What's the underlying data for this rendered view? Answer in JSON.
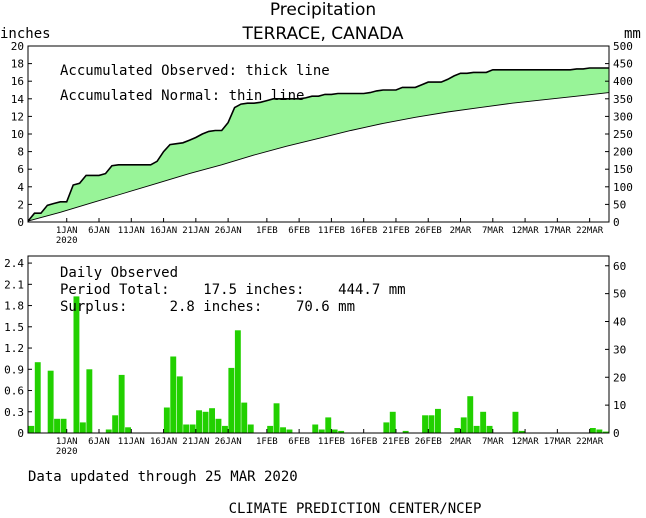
{
  "chart_data": [
    {
      "type": "area",
      "title": "Precipitation",
      "subtitle": "TERRACE, CANADA",
      "ylabel_left": "inches",
      "ylabel_right": "mm",
      "ylim": [
        0,
        20
      ],
      "yticks": [
        "0",
        "2",
        "4",
        "6",
        "8",
        "10",
        "12",
        "14",
        "16",
        "18",
        "20"
      ],
      "yticks_right": [
        "0",
        "50",
        "100",
        "150",
        "200",
        "250",
        "300",
        "350",
        "400",
        "450",
        "500"
      ],
      "fill_color": "#98F498",
      "annotations": [
        "Accumulated Observed: thick line",
        "Accumulated Normal: thin line"
      ],
      "x_days": 90,
      "date_ticks": [
        {
          "day": 6,
          "label": "1JAN",
          "sub": "2020"
        },
        {
          "day": 11,
          "label": "6JAN"
        },
        {
          "day": 16,
          "label": "11JAN"
        },
        {
          "day": 21,
          "label": "16JAN"
        },
        {
          "day": 26,
          "label": "21JAN"
        },
        {
          "day": 31,
          "label": "26JAN"
        },
        {
          "day": 37,
          "label": "1FEB"
        },
        {
          "day": 42,
          "label": "6FEB"
        },
        {
          "day": 47,
          "label": "11FEB"
        },
        {
          "day": 52,
          "label": "16FEB"
        },
        {
          "day": 57,
          "label": "21FEB"
        },
        {
          "day": 62,
          "label": "26FEB"
        },
        {
          "day": 67,
          "label": "2MAR"
        },
        {
          "day": 72,
          "label": "7MAR"
        },
        {
          "day": 77,
          "label": "12MAR"
        },
        {
          "day": 82,
          "label": "17MAR"
        },
        {
          "day": 87,
          "label": "22MAR"
        }
      ],
      "series": [
        {
          "name": "Accumulated Observed",
          "x": [
            0,
            1,
            2,
            3,
            4,
            5,
            6,
            7,
            8,
            9,
            10,
            11,
            12,
            13,
            14,
            15,
            16,
            17,
            18,
            19,
            20,
            21,
            22,
            23,
            24,
            25,
            26,
            27,
            28,
            29,
            30,
            31,
            32,
            33,
            34,
            35,
            36,
            37,
            38,
            39,
            40,
            41,
            42,
            43,
            44,
            45,
            46,
            47,
            48,
            49,
            50,
            51,
            52,
            53,
            54,
            55,
            56,
            57,
            58,
            59,
            60,
            61,
            62,
            63,
            64,
            65,
            66,
            67,
            68,
            69,
            70,
            71,
            72,
            73,
            74,
            75,
            76,
            77,
            78,
            79,
            80,
            81,
            82,
            83,
            84,
            85,
            86,
            87,
            88,
            89,
            90
          ],
          "values": [
            0.1,
            1.0,
            1.0,
            1.9,
            2.1,
            2.3,
            2.3,
            4.2,
            4.4,
            5.3,
            5.3,
            5.3,
            5.5,
            6.4,
            6.5,
            6.5,
            6.5,
            6.5,
            6.5,
            6.5,
            6.9,
            8.0,
            8.8,
            8.9,
            9.0,
            9.3,
            9.6,
            10.0,
            10.3,
            10.4,
            10.4,
            11.3,
            13.0,
            13.4,
            13.5,
            13.5,
            13.6,
            13.8,
            14.0,
            14.0,
            14.0,
            14.0,
            14.0,
            14.1,
            14.3,
            14.3,
            14.5,
            14.5,
            14.6,
            14.6,
            14.6,
            14.6,
            14.6,
            14.7,
            14.9,
            15.0,
            15.0,
            15.0,
            15.3,
            15.3,
            15.3,
            15.6,
            15.9,
            15.9,
            15.9,
            16.2,
            16.6,
            16.9,
            16.9,
            17.0,
            17.0,
            17.0,
            17.3,
            17.3,
            17.3,
            17.3,
            17.3,
            17.3,
            17.3,
            17.3,
            17.3,
            17.3,
            17.3,
            17.3,
            17.3,
            17.4,
            17.4,
            17.5,
            17.5,
            17.5,
            17.5
          ]
        },
        {
          "name": "Accumulated Normal",
          "x": [
            0,
            5,
            10,
            15,
            20,
            25,
            30,
            35,
            40,
            45,
            50,
            55,
            60,
            65,
            70,
            75,
            80,
            85,
            90
          ],
          "values": [
            0.1,
            1.1,
            2.2,
            3.3,
            4.4,
            5.5,
            6.5,
            7.6,
            8.6,
            9.5,
            10.4,
            11.2,
            11.9,
            12.5,
            13.0,
            13.5,
            13.9,
            14.3,
            14.7
          ]
        }
      ]
    },
    {
      "type": "bar",
      "title": "Daily Observed",
      "ylim": [
        0,
        2.5
      ],
      "yticks": [
        "0",
        "0.3",
        "0.6",
        "0.9",
        "1.2",
        "1.5",
        "1.8",
        "2.1",
        "2.4"
      ],
      "yticks_right": [
        "0",
        "10",
        "20",
        "30",
        "40",
        "50",
        "60"
      ],
      "bar_color": "#22D000",
      "annotations": {
        "line2": "Period Total:    17.5 inches:    444.7 mm",
        "line3": "Surplus:     2.8 inches:    70.6 mm"
      },
      "x": [
        0,
        1,
        2,
        3,
        4,
        5,
        6,
        7,
        8,
        9,
        10,
        11,
        12,
        13,
        14,
        15,
        16,
        17,
        18,
        19,
        20,
        21,
        22,
        23,
        24,
        25,
        26,
        27,
        28,
        29,
        30,
        31,
        32,
        33,
        34,
        35,
        36,
        37,
        38,
        39,
        40,
        41,
        42,
        43,
        44,
        45,
        46,
        47,
        48,
        49,
        50,
        51,
        52,
        53,
        54,
        55,
        56,
        57,
        58,
        59,
        60,
        61,
        62,
        63,
        64,
        65,
        66,
        67,
        68,
        69,
        70,
        71,
        72,
        73,
        74,
        75,
        76,
        77,
        78,
        79,
        80,
        81,
        82,
        83,
        84,
        85,
        86,
        87,
        88,
        89
      ],
      "values": [
        0.1,
        1.0,
        0.0,
        0.88,
        0.2,
        0.2,
        0.0,
        1.93,
        0.15,
        0.9,
        0.0,
        0.0,
        0.05,
        0.25,
        0.82,
        0.08,
        0.0,
        0.0,
        0.0,
        0.0,
        0.0,
        0.36,
        1.08,
        0.8,
        0.12,
        0.12,
        0.32,
        0.3,
        0.35,
        0.2,
        0.1,
        0.92,
        1.45,
        0.43,
        0.12,
        0.0,
        0.0,
        0.1,
        0.42,
        0.08,
        0.05,
        0.0,
        0.0,
        0.0,
        0.12,
        0.05,
        0.22,
        0.05,
        0.03,
        0.0,
        0.0,
        0.0,
        0.0,
        0.0,
        0.0,
        0.15,
        0.3,
        0.0,
        0.03,
        0.0,
        0.0,
        0.25,
        0.25,
        0.34,
        0.0,
        0.0,
        0.07,
        0.22,
        0.52,
        0.1,
        0.3,
        0.1,
        0.0,
        0.0,
        0.0,
        0.3,
        0.03,
        0.0,
        0.0,
        0.0,
        0.0,
        0.0,
        0.0,
        0.0,
        0.0,
        0.0,
        0.0,
        0.07,
        0.05,
        0.02
      ]
    }
  ],
  "footer": {
    "updated": "Data updated through 25 MAR 2020",
    "credit": "CLIMATE PREDICTION CENTER/NCEP"
  }
}
